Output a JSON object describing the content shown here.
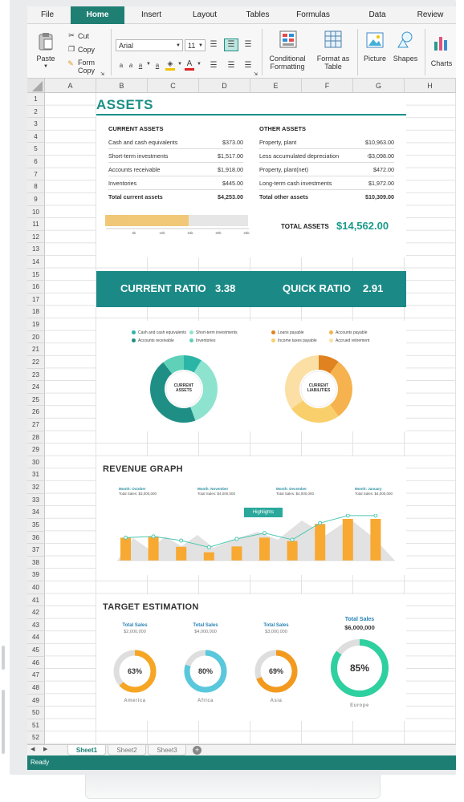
{
  "menu": {
    "tabs": [
      "File",
      "Home",
      "Insert",
      "Layout",
      "Tables",
      "Formulas",
      "Data",
      "Review"
    ],
    "active": "Home"
  },
  "ribbon": {
    "paste": "Paste",
    "cut": "Cut",
    "copy": "Copy",
    "format_copy_1": "Form",
    "format_copy_2": "Copy",
    "font": "Arial",
    "size": "11",
    "conditional_1": "Conditional",
    "conditional_2": "Formatting",
    "format_table_1": "Format as",
    "format_table_2": "Table",
    "picture": "Picture",
    "shapes": "Shapes",
    "charts": "Charts"
  },
  "columns": [
    "A",
    "B",
    "C",
    "D",
    "E",
    "F",
    "G",
    "H"
  ],
  "rows": [
    "1",
    "2",
    "3",
    "4",
    "5",
    "6",
    "7",
    "8",
    "9",
    "10",
    "11",
    "12",
    "13",
    "14",
    "15",
    "16",
    "17",
    "18",
    "19",
    "20",
    "21",
    "22",
    "23",
    "24",
    "25",
    "26",
    "27",
    "28",
    "29",
    "30",
    "31",
    "32",
    "33",
    "34",
    "35",
    "36",
    "37",
    "38",
    "39",
    "40",
    "41",
    "42",
    "43",
    "44",
    "45",
    "46",
    "47",
    "48",
    "49",
    "50",
    "51",
    "52"
  ],
  "assets": {
    "title": "ASSETS",
    "current": {
      "heading": "CURRENT ASSETS",
      "rows": [
        [
          "Cash and cash equivalents",
          "$373.00"
        ],
        [
          "Short-term investments",
          "$1,517.00"
        ],
        [
          "Accounts receivable",
          "$1,918.00"
        ],
        [
          "Inventories",
          "$445.00"
        ]
      ],
      "total": [
        "Total current assets",
        "$4,253.00"
      ]
    },
    "other": {
      "heading": "OTHER ASSETS",
      "rows": [
        [
          "Property, plant",
          "$10,963.00"
        ],
        [
          "Less accumulated depreciation",
          "-$3,098.00"
        ],
        [
          "Property, plant(net)",
          "$472.00"
        ],
        [
          "Long-term cash investments",
          "$1,972.00"
        ]
      ],
      "total": [
        "Total other assets",
        "$10,309.00"
      ]
    },
    "total_label": "TOTAL ASSETS",
    "total_value": "$14,562.00",
    "bar_ticks": [
      "5k",
      "10k",
      "15k",
      "20k",
      "25k"
    ],
    "bar_fill_fraction": 0.58
  },
  "ratios": {
    "current_label": "CURRENT RATIO",
    "current_value": "3.38",
    "quick_label": "QUICK RATIO",
    "quick_value": "2.91"
  },
  "donuts": {
    "assets": {
      "center_1": "CURRENT",
      "center_2": "ASSETS",
      "legend": [
        "Cash and cash equivalents",
        "Short-term investments",
        "Accounts receivable",
        "Inventories"
      ],
      "colors": [
        "#2bb5a6",
        "#8ee3cf",
        "#1f8f86",
        "#5fd1b8"
      ],
      "values": [
        373,
        1517,
        1918,
        445
      ]
    },
    "liabilities": {
      "center_1": "CURRENT",
      "center_2": "LIABILITIES",
      "legend": [
        "Loans payable",
        "Accounts payable",
        "Income taxes payable",
        "Accrued retirement"
      ],
      "colors": [
        "#e0821f",
        "#f5b24e",
        "#f9cf6b",
        "#fbdfa4"
      ],
      "values": [
        10,
        30,
        25,
        35
      ]
    }
  },
  "revenue": {
    "title": "REVENUE GRAPH",
    "highlights": "Highlights",
    "months": [
      {
        "month": "Month: October",
        "sales": "Total Sales: $3,000,000"
      },
      {
        "month": "Month: November",
        "sales": "Total Sales: $4,000,000"
      },
      {
        "month": "Month: December",
        "sales": "Total Sales: $4,000,000"
      },
      {
        "month": "Month: January",
        "sales": "Total Sales: $4,000,000"
      }
    ]
  },
  "target": {
    "title": "TARGET ESTIMATION",
    "items": [
      {
        "label": "Total Sales",
        "amount": "$2,000,000",
        "pct": "63%",
        "region": "America",
        "value": 0.63,
        "color": "#f6a623"
      },
      {
        "label": "Total Sales",
        "amount": "$4,000,000",
        "pct": "80%",
        "region": "Africa",
        "value": 0.8,
        "color": "#59c8dc"
      },
      {
        "label": "Total Sales",
        "amount": "$3,000,000",
        "pct": "69%",
        "region": "Asia",
        "value": 0.69,
        "color": "#f39a1e"
      },
      {
        "label": "Total Sales",
        "amount": "$6,000,000",
        "pct": "85%",
        "region": "Europe",
        "value": 0.85,
        "color": "#2fd0a0"
      }
    ]
  },
  "sheets": [
    "Sheet1",
    "Sheet2",
    "Sheet3"
  ],
  "status": "Ready",
  "chart_data": {
    "type": "bar",
    "bars": [
      [
        1,
        0.55
      ],
      [
        2,
        0.58
      ],
      [
        3,
        0.33
      ],
      [
        4,
        0.2
      ],
      [
        5,
        0.34
      ],
      [
        6,
        0.55
      ],
      [
        7,
        0.47
      ],
      [
        8,
        0.88
      ],
      [
        9,
        1.0
      ],
      [
        10,
        1.0
      ]
    ],
    "line": [
      [
        0,
        0.55
      ],
      [
        1,
        0.58
      ],
      [
        2,
        0.48
      ],
      [
        3,
        0.32
      ],
      [
        4,
        0.52
      ],
      [
        5,
        0.66
      ],
      [
        6,
        0.5
      ],
      [
        7,
        0.9
      ],
      [
        8,
        1.08
      ],
      [
        9,
        1.08
      ]
    ]
  }
}
